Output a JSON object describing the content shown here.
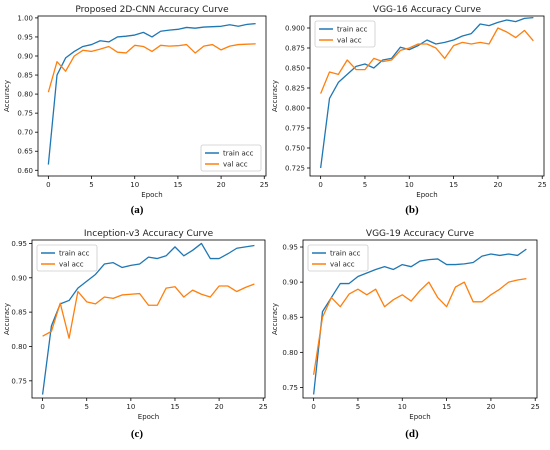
{
  "chart_data": [
    {
      "type": "line",
      "title": "Proposed 2D-CNN Accuracy Curve",
      "caption": "(a)",
      "xlabel": "Epoch",
      "ylabel": "Accuracy",
      "xlim": [
        -1.2,
        25.2
      ],
      "ylim": [
        0.585,
        1.005
      ],
      "xticks": [
        0,
        5,
        10,
        15,
        20,
        25
      ],
      "yticks": [
        0.6,
        0.65,
        0.7,
        0.75,
        0.8,
        0.85,
        0.9,
        0.95,
        1.0
      ],
      "ytick_labels": [
        "0.60",
        "0.65",
        "0.70",
        "0.75",
        "0.80",
        "0.85",
        "0.90",
        "0.95",
        "1.00"
      ],
      "legend_position": "lower-right",
      "x": [
        0,
        1,
        2,
        3,
        4,
        5,
        6,
        7,
        8,
        9,
        10,
        11,
        12,
        13,
        14,
        15,
        16,
        17,
        18,
        19,
        20,
        21,
        22,
        23,
        24
      ],
      "series": [
        {
          "name": "train acc",
          "color": "#1f77b4",
          "values": [
            0.615,
            0.85,
            0.895,
            0.912,
            0.925,
            0.93,
            0.94,
            0.937,
            0.95,
            0.952,
            0.955,
            0.962,
            0.95,
            0.965,
            0.968,
            0.97,
            0.975,
            0.973,
            0.976,
            0.977,
            0.978,
            0.982,
            0.978,
            0.983,
            0.985
          ]
        },
        {
          "name": "val acc",
          "color": "#ff7f0e",
          "values": [
            0.805,
            0.885,
            0.86,
            0.9,
            0.915,
            0.912,
            0.918,
            0.925,
            0.91,
            0.908,
            0.928,
            0.925,
            0.912,
            0.928,
            0.926,
            0.927,
            0.93,
            0.908,
            0.926,
            0.93,
            0.916,
            0.926,
            0.93,
            0.931,
            0.932
          ]
        }
      ]
    },
    {
      "type": "line",
      "title": "VGG-16 Accuracy Curve",
      "caption": "(b)",
      "xlabel": "Epoch",
      "ylabel": "Accuracy",
      "xlim": [
        -1.2,
        25.2
      ],
      "ylim": [
        0.715,
        0.915
      ],
      "xticks": [
        0,
        5,
        10,
        15,
        20,
        25
      ],
      "yticks": [
        0.725,
        0.75,
        0.775,
        0.8,
        0.825,
        0.85,
        0.875,
        0.9
      ],
      "ytick_labels": [
        "0.725",
        "0.750",
        "0.775",
        "0.800",
        "0.825",
        "0.850",
        "0.875",
        "0.900"
      ],
      "legend_position": "upper-left",
      "x": [
        0,
        1,
        2,
        3,
        4,
        5,
        6,
        7,
        8,
        9,
        10,
        11,
        12,
        13,
        14,
        15,
        16,
        17,
        18,
        19,
        20,
        21,
        22,
        23,
        24
      ],
      "series": [
        {
          "name": "train acc",
          "color": "#1f77b4",
          "values": [
            0.725,
            0.812,
            0.832,
            0.842,
            0.852,
            0.855,
            0.85,
            0.86,
            0.862,
            0.876,
            0.873,
            0.878,
            0.885,
            0.88,
            0.882,
            0.885,
            0.89,
            0.893,
            0.905,
            0.903,
            0.907,
            0.91,
            0.908,
            0.912,
            0.913
          ]
        },
        {
          "name": "val acc",
          "color": "#ff7f0e",
          "values": [
            0.818,
            0.845,
            0.842,
            0.86,
            0.848,
            0.848,
            0.862,
            0.858,
            0.86,
            0.872,
            0.875,
            0.88,
            0.88,
            0.875,
            0.862,
            0.878,
            0.882,
            0.88,
            0.882,
            0.88,
            0.9,
            0.895,
            0.888,
            0.897,
            0.884
          ]
        }
      ]
    },
    {
      "type": "line",
      "title": "Inception-v3 Accuracy Curve",
      "caption": "(c)",
      "xlabel": "Epoch",
      "ylabel": "Accuracy",
      "xlim": [
        -1.2,
        25.2
      ],
      "ylim": [
        0.725,
        0.955
      ],
      "xticks": [
        0,
        5,
        10,
        15,
        20,
        25
      ],
      "yticks": [
        0.75,
        0.8,
        0.85,
        0.9,
        0.95
      ],
      "ytick_labels": [
        "0.75",
        "0.80",
        "0.85",
        "0.90",
        "0.95"
      ],
      "legend_position": "upper-left",
      "x": [
        0,
        1,
        2,
        3,
        4,
        5,
        6,
        7,
        8,
        9,
        10,
        11,
        12,
        13,
        14,
        15,
        16,
        17,
        18,
        19,
        20,
        21,
        22,
        23,
        24
      ],
      "series": [
        {
          "name": "train acc",
          "color": "#1f77b4",
          "values": [
            0.73,
            0.83,
            0.862,
            0.867,
            0.885,
            0.895,
            0.905,
            0.92,
            0.922,
            0.915,
            0.918,
            0.92,
            0.93,
            0.928,
            0.932,
            0.945,
            0.932,
            0.94,
            0.95,
            0.928,
            0.928,
            0.935,
            0.943,
            0.945,
            0.947
          ]
        },
        {
          "name": "val acc",
          "color": "#ff7f0e",
          "values": [
            0.815,
            0.822,
            0.863,
            0.812,
            0.88,
            0.865,
            0.862,
            0.872,
            0.87,
            0.875,
            0.876,
            0.877,
            0.86,
            0.86,
            0.885,
            0.887,
            0.872,
            0.882,
            0.876,
            0.872,
            0.888,
            0.888,
            0.88,
            0.886,
            0.891
          ]
        }
      ]
    },
    {
      "type": "line",
      "title": "VGG-19 Accuracy Curve",
      "caption": "(d)",
      "xlabel": "Epoch",
      "ylabel": "Accuracy",
      "xlim": [
        -1.2,
        25.2
      ],
      "ylim": [
        0.735,
        0.96
      ],
      "xticks": [
        0,
        5,
        10,
        15,
        20,
        25
      ],
      "yticks": [
        0.75,
        0.8,
        0.85,
        0.9,
        0.95
      ],
      "ytick_labels": [
        "0.75",
        "0.80",
        "0.85",
        "0.90",
        "0.95"
      ],
      "legend_position": "upper-left",
      "x": [
        0,
        1,
        2,
        3,
        4,
        5,
        6,
        7,
        8,
        9,
        10,
        11,
        12,
        13,
        14,
        15,
        16,
        17,
        18,
        19,
        20,
        21,
        22,
        23,
        24
      ],
      "series": [
        {
          "name": "train acc",
          "color": "#1f77b4",
          "values": [
            0.74,
            0.858,
            0.878,
            0.898,
            0.898,
            0.908,
            0.913,
            0.918,
            0.922,
            0.918,
            0.925,
            0.922,
            0.93,
            0.932,
            0.933,
            0.925,
            0.925,
            0.926,
            0.928,
            0.937,
            0.94,
            0.938,
            0.94,
            0.938,
            0.947
          ]
        },
        {
          "name": "val acc",
          "color": "#ff7f0e",
          "values": [
            0.768,
            0.85,
            0.878,
            0.865,
            0.883,
            0.89,
            0.882,
            0.89,
            0.865,
            0.875,
            0.882,
            0.873,
            0.888,
            0.9,
            0.878,
            0.865,
            0.893,
            0.9,
            0.872,
            0.872,
            0.882,
            0.89,
            0.9,
            0.903,
            0.905
          ]
        }
      ]
    }
  ]
}
